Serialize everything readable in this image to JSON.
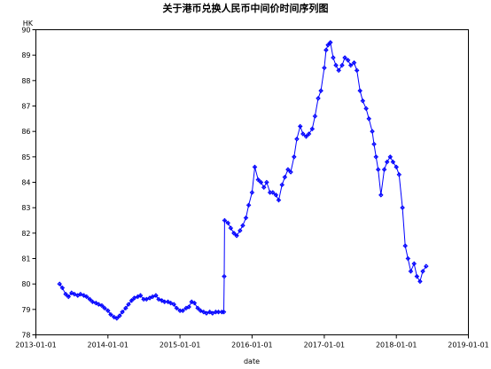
{
  "chart_data": {
    "type": "line",
    "title": "关于港币兑换人民币中间价时间序列图",
    "xlabel": "date",
    "ylabel": "HK",
    "ylim": [
      78,
      90
    ],
    "xlim": [
      "2013-01-01",
      "2019-01-01"
    ],
    "x_ticks": [
      "2013-01-01",
      "2014-01-01",
      "2015-01-01",
      "2016-01-01",
      "2017-01-01",
      "2018-01-01",
      "2019-01-01"
    ],
    "y_ticks": [
      "78",
      "79",
      "80",
      "81",
      "82",
      "83",
      "84",
      "85",
      "86",
      "87",
      "88",
      "89",
      "90"
    ],
    "grid": false,
    "marker": "diamond-cross",
    "line_color": "#0000ff",
    "series": [
      {
        "x": [
          "2013-05-01",
          "2013-05-15",
          "2013-06-01",
          "2013-06-15",
          "2013-07-01",
          "2013-07-15",
          "2013-08-01",
          "2013-08-15",
          "2013-09-01",
          "2013-09-15",
          "2013-10-01",
          "2013-10-15",
          "2013-11-01",
          "2013-11-15",
          "2013-12-01",
          "2013-12-15",
          "2014-01-01",
          "2014-01-15",
          "2014-02-01",
          "2014-02-15",
          "2014-03-01",
          "2014-03-15",
          "2014-04-01",
          "2014-04-15",
          "2014-05-01",
          "2014-05-15",
          "2014-06-01",
          "2014-06-15",
          "2014-07-01",
          "2014-07-15",
          "2014-08-01",
          "2014-08-15",
          "2014-09-01",
          "2014-09-15",
          "2014-10-01",
          "2014-10-15",
          "2014-11-01",
          "2014-11-15",
          "2014-12-01",
          "2014-12-15",
          "2015-01-01",
          "2015-01-15",
          "2015-02-01",
          "2015-02-15",
          "2015-03-01",
          "2015-03-15",
          "2015-04-01",
          "2015-04-15",
          "2015-05-01",
          "2015-05-15",
          "2015-06-01",
          "2015-06-15",
          "2015-07-01",
          "2015-07-15",
          "2015-08-01",
          "2015-08-11",
          "2015-08-13",
          "2015-08-15",
          "2015-09-01",
          "2015-09-15",
          "2015-10-01",
          "2015-10-15",
          "2015-11-01",
          "2015-11-15",
          "2015-12-01",
          "2015-12-15",
          "2016-01-01",
          "2016-01-15",
          "2016-02-01",
          "2016-02-15",
          "2016-03-01",
          "2016-03-15",
          "2016-04-01",
          "2016-04-15",
          "2016-05-01",
          "2016-05-15",
          "2016-06-01",
          "2016-06-15",
          "2016-07-01",
          "2016-07-15",
          "2016-08-01",
          "2016-08-15",
          "2016-09-01",
          "2016-09-15",
          "2016-10-01",
          "2016-10-15",
          "2016-11-01",
          "2016-11-15",
          "2016-12-01",
          "2016-12-15",
          "2017-01-01",
          "2017-01-10",
          "2017-01-20",
          "2017-02-01",
          "2017-02-15",
          "2017-03-01",
          "2017-03-15",
          "2017-04-01",
          "2017-04-15",
          "2017-05-01",
          "2017-05-15",
          "2017-06-01",
          "2017-06-15",
          "2017-07-01",
          "2017-07-15",
          "2017-08-01",
          "2017-08-15",
          "2017-09-01",
          "2017-09-10",
          "2017-09-20",
          "2017-10-01",
          "2017-10-15",
          "2017-11-01",
          "2017-11-15",
          "2017-12-01",
          "2017-12-15",
          "2018-01-01",
          "2018-01-15",
          "2018-02-01",
          "2018-02-15",
          "2018-03-01",
          "2018-03-15",
          "2018-04-01",
          "2018-04-15",
          "2018-05-01",
          "2018-05-15",
          "2018-06-01"
        ],
        "values": [
          80.0,
          79.85,
          79.6,
          79.5,
          79.65,
          79.6,
          79.55,
          79.6,
          79.55,
          79.5,
          79.4,
          79.3,
          79.25,
          79.2,
          79.15,
          79.05,
          78.95,
          78.8,
          78.7,
          78.65,
          78.75,
          78.9,
          79.05,
          79.2,
          79.35,
          79.45,
          79.5,
          79.55,
          79.4,
          79.4,
          79.45,
          79.5,
          79.55,
          79.4,
          79.35,
          79.3,
          79.3,
          79.25,
          79.2,
          79.05,
          78.95,
          78.95,
          79.05,
          79.1,
          79.3,
          79.25,
          79.05,
          78.95,
          78.9,
          78.85,
          78.9,
          78.85,
          78.9,
          78.9,
          78.9,
          78.9,
          80.3,
          82.5,
          82.4,
          82.2,
          82.0,
          81.9,
          82.1,
          82.3,
          82.6,
          83.1,
          83.6,
          84.6,
          84.1,
          84.0,
          83.8,
          84.0,
          83.6,
          83.6,
          83.5,
          83.3,
          83.9,
          84.2,
          84.5,
          84.4,
          85.0,
          85.7,
          86.2,
          85.9,
          85.8,
          85.9,
          86.1,
          86.6,
          87.3,
          87.6,
          88.5,
          89.2,
          89.4,
          89.5,
          88.9,
          88.6,
          88.4,
          88.6,
          88.9,
          88.8,
          88.6,
          88.7,
          88.4,
          87.6,
          87.2,
          86.9,
          86.5,
          86.0,
          85.5,
          85.0,
          84.5,
          83.5,
          84.5,
          84.8,
          85.0,
          84.8,
          84.6,
          84.3,
          83.0,
          81.5,
          81.0,
          80.5,
          80.8,
          80.3,
          80.1,
          80.5,
          80.7
        ]
      }
    ]
  }
}
